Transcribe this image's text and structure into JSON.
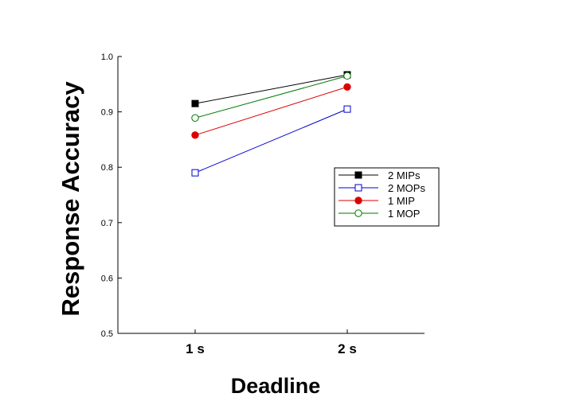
{
  "chart_data": {
    "type": "line",
    "categories": [
      "1 s",
      "2 s"
    ],
    "xlabel": "Deadline",
    "ylabel": "Response Accuracy",
    "ylim": [
      0.5,
      1.0
    ],
    "yticks": [
      "0.5",
      "0.6",
      "0.7",
      "0.8",
      "0.9",
      "1.0"
    ],
    "grid": false,
    "legend_position": "right",
    "series": [
      {
        "name": "2 MIPs",
        "values": [
          0.915,
          0.967
        ],
        "color": "#000000",
        "marker": "square",
        "filled": true
      },
      {
        "name": "2 MOPs",
        "values": [
          0.79,
          0.905
        ],
        "color": "#0000cc",
        "marker": "square",
        "filled": false
      },
      {
        "name": "1 MIP",
        "values": [
          0.858,
          0.945
        ],
        "color": "#dd0000",
        "marker": "circle",
        "filled": true
      },
      {
        "name": "1 MOP",
        "values": [
          0.889,
          0.965
        ],
        "color": "#007700",
        "marker": "circle",
        "filled": false
      }
    ]
  }
}
